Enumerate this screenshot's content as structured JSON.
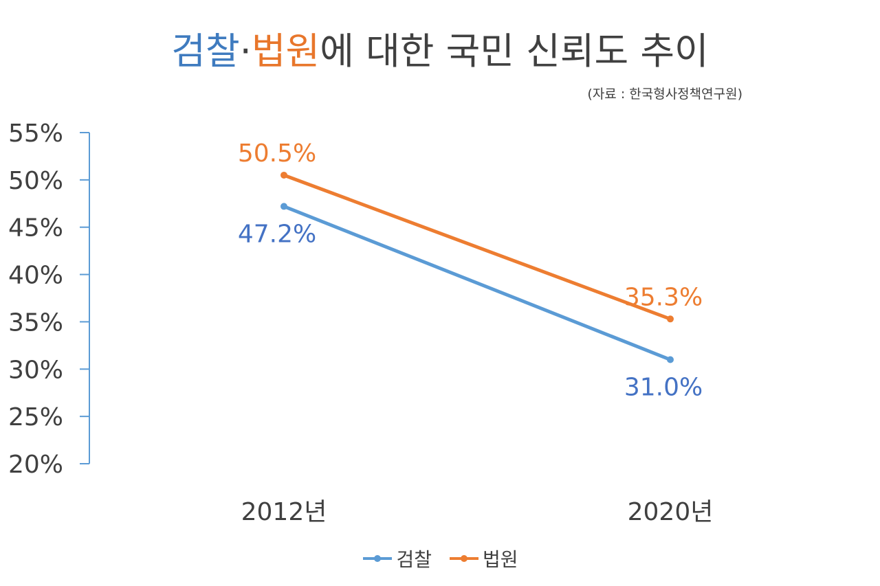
{
  "chart_data": {
    "type": "line",
    "title_parts": [
      {
        "text": "검찰",
        "color": "#3f7bbf"
      },
      {
        "text": "·",
        "color": "#404040"
      },
      {
        "text": "법원",
        "color": "#e8762b"
      },
      {
        "text": "에 대한 국민 신뢰도 추이",
        "color": "#404040"
      }
    ],
    "source": "(자료 : 한국형사정책연구원)",
    "categories": [
      "2012년",
      "2020년"
    ],
    "ylim": [
      20,
      55
    ],
    "yticks": [
      20,
      25,
      30,
      35,
      40,
      45,
      50,
      55
    ],
    "ytick_suffix": "%",
    "series": [
      {
        "name": "검찰",
        "color": "#5b9bd5",
        "label_color": "#4472c4",
        "values": [
          47.2,
          31.0
        ],
        "labels": [
          "47.2%",
          "31.0%"
        ]
      },
      {
        "name": "법원",
        "color": "#ed7d31",
        "label_color": "#ed7d31",
        "values": [
          50.5,
          35.3
        ],
        "labels": [
          "50.5%",
          "35.3%"
        ]
      }
    ],
    "legend_position": "bottom",
    "grid": false
  }
}
